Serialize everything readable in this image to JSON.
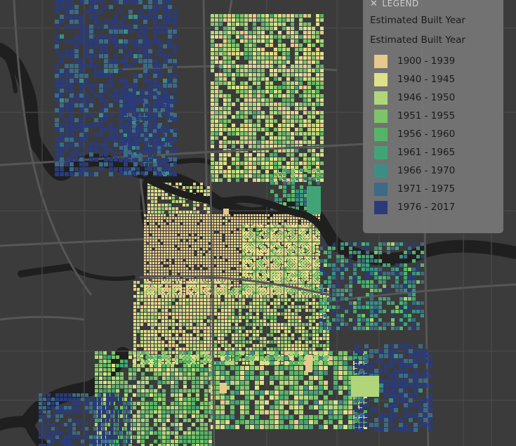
{
  "legend": {
    "header": "LEGEND",
    "layer_title": "Estimated Built Year",
    "field_title": "Estimated Built Year",
    "items": [
      {
        "label": "1900 - 1939",
        "color": "#e8c98d"
      },
      {
        "label": "1940 - 1945",
        "color": "#dfe08a"
      },
      {
        "label": "1946 - 1950",
        "color": "#b1d67a"
      },
      {
        "label": "1951 - 1955",
        "color": "#7cc46a"
      },
      {
        "label": "1956 - 1960",
        "color": "#55b467"
      },
      {
        "label": "1961 - 1965",
        "color": "#42a476"
      },
      {
        "label": "1966 - 1970",
        "color": "#3a8f85"
      },
      {
        "label": "1971 - 1975",
        "color": "#3b6b86"
      },
      {
        "label": "1976 - 2017",
        "color": "#2b3b7a"
      }
    ]
  },
  "map": {
    "background_color": "#3b3b3b",
    "water_color": "#1f1f1f",
    "road_color": "#555555"
  }
}
